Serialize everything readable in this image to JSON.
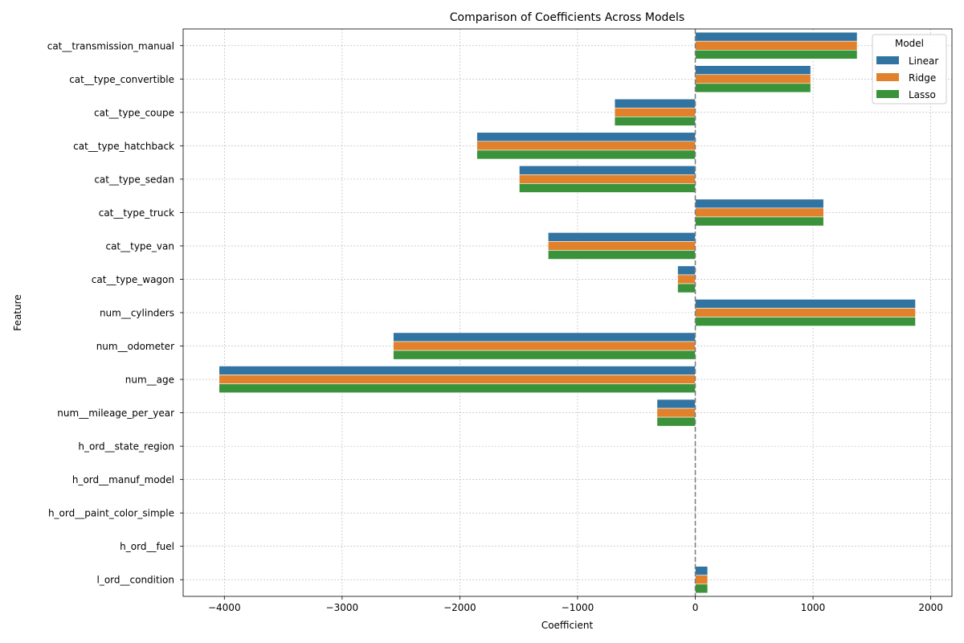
{
  "chart_data": {
    "type": "bar",
    "orientation": "horizontal",
    "title": "Comparison of Coefficients Across Models",
    "xlabel": "Coefficient",
    "ylabel": "Feature",
    "xlim": [
      -4350,
      2180
    ],
    "xticks": [
      -4000,
      -3000,
      -2000,
      -1000,
      0,
      1000,
      2000
    ],
    "xtick_labels": [
      "−4000",
      "−3000",
      "−2000",
      "−1000",
      "0",
      "1000",
      "2000"
    ],
    "grid": true,
    "zero_line": true,
    "categories": [
      "cat__transmission_manual",
      "cat__type_convertible",
      "cat__type_coupe",
      "cat__type_hatchback",
      "cat__type_sedan",
      "cat__type_truck",
      "cat__type_van",
      "cat__type_wagon",
      "num__cylinders",
      "num__odometer",
      "num__age",
      "num__mileage_per_year",
      "h_ord__state_region",
      "h_ord__manuf_model",
      "h_ord__paint_color_simple",
      "h_ord__fuel",
      "l_ord__condition"
    ],
    "series": [
      {
        "name": "Linear",
        "color": "#3274a1",
        "values": [
          1375,
          980,
          -685,
          -1855,
          -1495,
          1090,
          -1250,
          -150,
          1870,
          -2565,
          -4045,
          -325,
          0,
          0,
          0,
          0,
          105
        ]
      },
      {
        "name": "Ridge",
        "color": "#e1812c",
        "values": [
          1375,
          980,
          -685,
          -1855,
          -1495,
          1090,
          -1250,
          -150,
          1870,
          -2565,
          -4045,
          -325,
          0,
          0,
          0,
          0,
          105
        ]
      },
      {
        "name": "Lasso",
        "color": "#3a923a",
        "values": [
          1375,
          980,
          -685,
          -1855,
          -1495,
          1090,
          -1250,
          -150,
          1870,
          -2565,
          -4045,
          -325,
          0,
          0,
          0,
          0,
          105
        ]
      }
    ],
    "legend": {
      "title": "Model",
      "position": "top-right"
    }
  }
}
